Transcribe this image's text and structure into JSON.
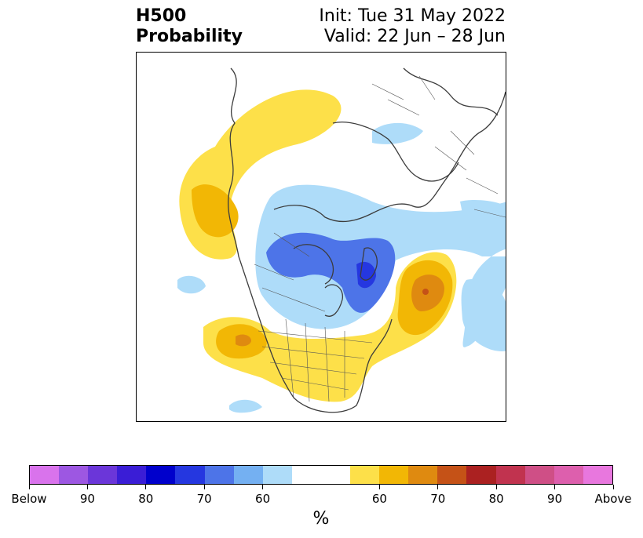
{
  "title": {
    "left_line1": "H500",
    "left_line2": "Probability",
    "right_line1": "Init: Tue 31 May 2022",
    "right_line2": "Valid: 22 Jun – 28 Jun"
  },
  "colorbar": {
    "colors": [
      "#d973ec",
      "#9d57e2",
      "#6b36d9",
      "#3a1dd6",
      "#0000cc",
      "#2537e0",
      "#4d74e8",
      "#74b0f2",
      "#aedcf9",
      "#ffffff",
      "#ffffff",
      "#fde049",
      "#f2b705",
      "#df8a10",
      "#c55217",
      "#ab2121",
      "#c1334f",
      "#cf4f86",
      "#dd5fad",
      "#e877de"
    ],
    "tick_labels": [
      "Below",
      "90",
      "80",
      "70",
      "60",
      "60",
      "70",
      "80",
      "90",
      "Above"
    ],
    "unit": "%"
  },
  "legend_colors": {
    "light_blue": "#aedcf9",
    "mid_blue": "#4d74e8",
    "blue": "#2537e0",
    "yellow": "#fde049",
    "gold": "#f2b705",
    "orange": "#df8a10",
    "red_orange": "#c55217",
    "coastline": "#3c3c3c"
  }
}
